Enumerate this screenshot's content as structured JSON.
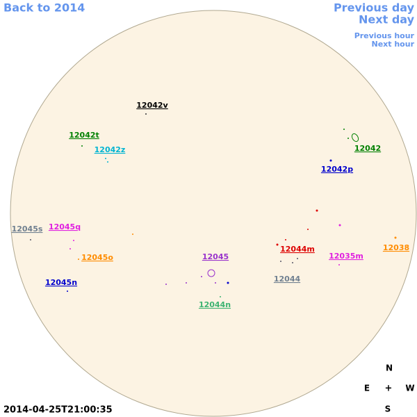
{
  "nav": {
    "back": "Back to 2014",
    "previous_day": "Previous day",
    "next_day": "Next day",
    "previous_hour": "Previous hour",
    "next_hour": "Next hour"
  },
  "timestamp": "2014-04-25T21:00:35",
  "compass": {
    "north": "N",
    "east": "E",
    "center": "+",
    "west": "W",
    "south": "S"
  },
  "regions": [
    {
      "label": "12042v",
      "color": "#000000"
    },
    {
      "label": "12042t",
      "color": "#008000"
    },
    {
      "label": "12042z",
      "color": "#00b4d2"
    },
    {
      "label": "12042",
      "color": "#008000"
    },
    {
      "label": "12042p",
      "color": "#0000cd"
    },
    {
      "label": "12045s",
      "color": "#708090"
    },
    {
      "label": "12045q",
      "color": "#e020e0"
    },
    {
      "label": "12045o",
      "color": "#ff8c00"
    },
    {
      "label": "12045",
      "color": "#9932cc"
    },
    {
      "label": "12044m",
      "color": "#dd0000"
    },
    {
      "label": "12035m",
      "color": "#e020e0"
    },
    {
      "label": "12038",
      "color": "#ff8c00"
    },
    {
      "label": "12044",
      "color": "#708090"
    },
    {
      "label": "12045n",
      "color": "#0000cd"
    },
    {
      "label": "12044n",
      "color": "#3cb371"
    }
  ]
}
